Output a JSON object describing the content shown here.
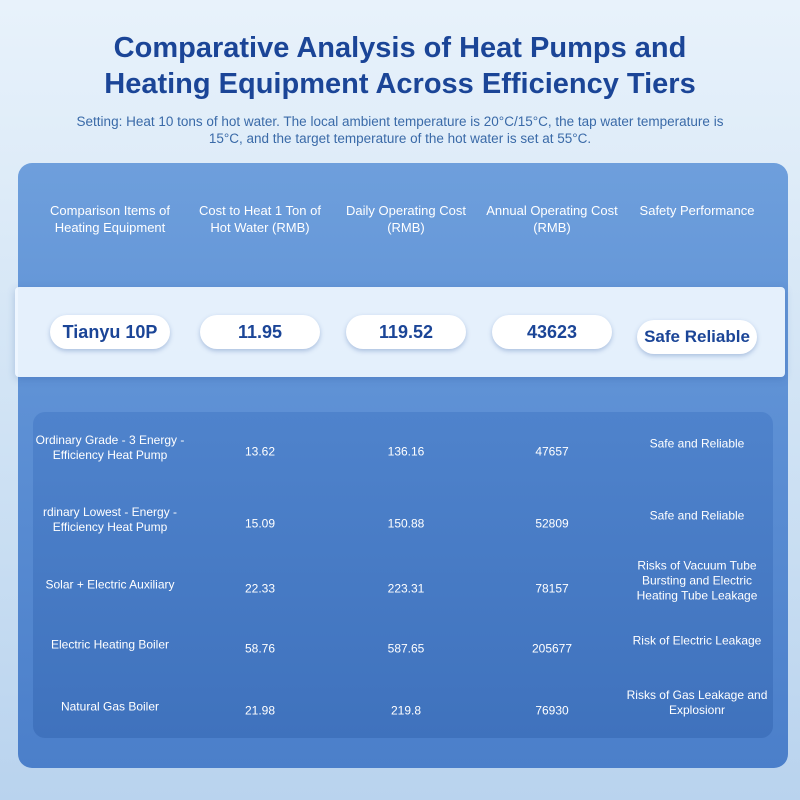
{
  "header": {
    "title": "Comparative Analysis of Heat Pumps and Heating Equipment Across Efficiency Tiers",
    "subtitle": "Setting: Heat 10 tons of hot water. The local ambient temperature is 20°C/15°C, the tap water temperature is 15°C, and the target temperature of the hot water is set at 55°C."
  },
  "table": {
    "columns": [
      "Comparison Items of Heating Equipment",
      "Cost to Heat 1 Ton of Hot Water (RMB)",
      "Daily Operating Cost (RMB)",
      "Annual Operating Cost (RMB)",
      "Safety Performance"
    ],
    "highlight": [
      "Tianyu 10P",
      "11.95",
      "119.52",
      "43623",
      "Safe Reliable"
    ],
    "rows": [
      [
        "Ordinary Grade - 3 Energy - Efficiency Heat Pump",
        "13.62",
        "136.16",
        "47657",
        "Safe and Reliable"
      ],
      [
        "rdinary Lowest - Energy - Efficiency Heat Pump",
        "15.09",
        "150.88",
        "52809",
        "Safe and Reliable"
      ],
      [
        "Solar + Electric Auxiliary",
        "22.33",
        "223.31",
        "78157",
        "Risks of Vacuum Tube Bursting and Electric Heating Tube Leakage"
      ],
      [
        "Electric Heating Boiler",
        "58.76",
        "587.65",
        "205677",
        "Risk of Electric Leakage"
      ],
      [
        "Natural Gas Boiler",
        "21.98",
        "219.8",
        "76930",
        "Risks of Gas Leakage and Explosionr"
      ]
    ]
  }
}
